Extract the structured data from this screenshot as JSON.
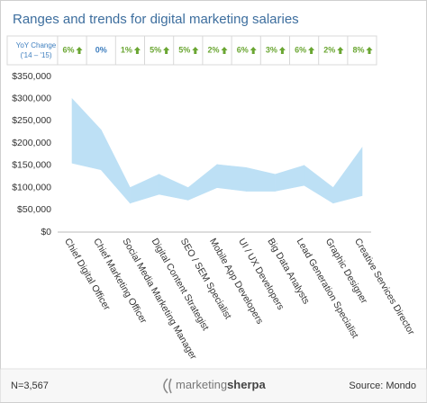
{
  "chart_data": {
    "type": "range_area",
    "title": "Ranges and trends for digital marketing salaries",
    "yoy_label": "YoY Change",
    "yoy_sublabel": "('14 – '15)",
    "yoy_values": [
      6,
      0,
      1,
      5,
      5,
      2,
      6,
      3,
      6,
      2,
      8
    ],
    "yoy_value_labels": [
      "6%",
      "0%",
      "1%",
      "5%",
      "5%",
      "2%",
      "6%",
      "3%",
      "6%",
      "2%",
      "8%"
    ],
    "yoy_up_color": "#6aa632",
    "yoy_flat_color": "#3f7fbf",
    "categories": [
      "Chief Digital Officer",
      "Chief Marketing Officer",
      "Social Media Marketing Manager",
      "Digital Content Strategist",
      "SEO / SEM Specialist",
      "Mobile App Developers",
      "UI / UX Developers",
      "Big Data Analysts",
      "Lead Generation Specialist",
      "Graphic Designer",
      "Creative Services Director"
    ],
    "low": [
      155000,
      140000,
      65000,
      85000,
      72000,
      100000,
      92000,
      92000,
      105000,
      65000,
      82000
    ],
    "high": [
      300000,
      230000,
      100000,
      130000,
      100000,
      152000,
      145000,
      130000,
      150000,
      100000,
      190000
    ],
    "color": "#bde0f5",
    "ylim": [
      0,
      350000
    ],
    "yticks": [
      {
        "value": 0,
        "label": "$0"
      },
      {
        "value": 50000,
        "label": "$50,000"
      },
      {
        "value": 100000,
        "label": "$100,000"
      },
      {
        "value": 150000,
        "label": "$150,000"
      },
      {
        "value": 200000,
        "label": "$200,000"
      },
      {
        "value": 250000,
        "label": "$250,000"
      },
      {
        "value": 300000,
        "label": "$300,000"
      },
      {
        "value": 350000,
        "label": "$350,000"
      }
    ],
    "grid": false,
    "sample_note": "N=3,567",
    "logo": [
      "marketing",
      "sherpa"
    ],
    "source": "Source: Mondo"
  }
}
